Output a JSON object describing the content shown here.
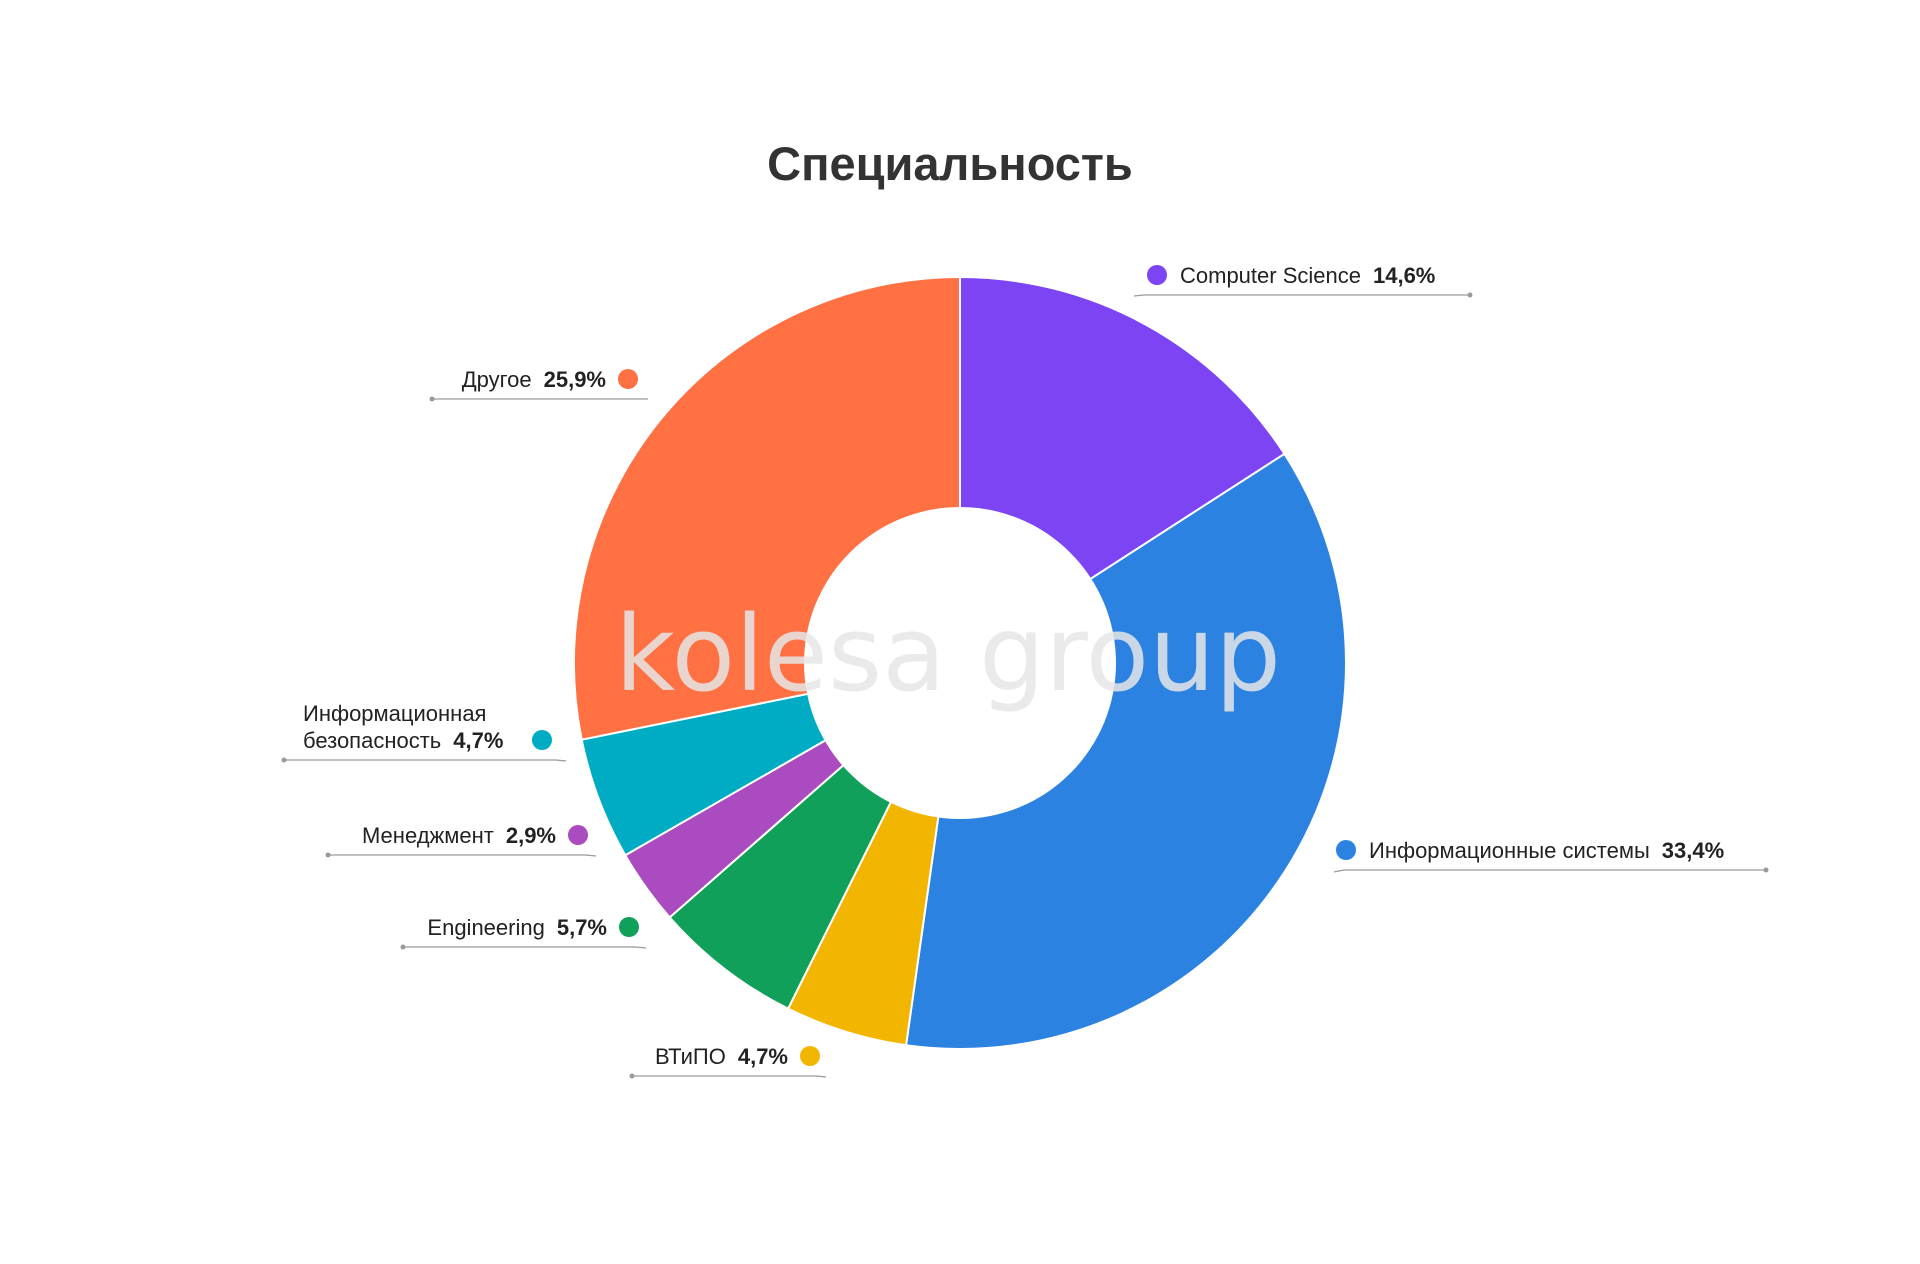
{
  "watermark": "kolesa group",
  "chart_data": {
    "type": "pie",
    "donut": true,
    "title": "Специальность",
    "slices": [
      {
        "label": "Computer Science",
        "value": 14.6,
        "value_text": "14,6%",
        "color": "#7C44F2"
      },
      {
        "label": "Информационные системы",
        "value": 33.4,
        "value_text": "33,4%",
        "color": "#2B82E0"
      },
      {
        "label": "ВТиПО",
        "value": 4.7,
        "value_text": "4,7%",
        "color": "#F3B600"
      },
      {
        "label": "Engineering",
        "value": 5.7,
        "value_text": "5,7%",
        "color": "#11A05A"
      },
      {
        "label": "Менеджмент",
        "value": 2.9,
        "value_text": "2,9%",
        "color": "#AA4BBF"
      },
      {
        "label": "Информационная безопасность",
        "label_lines": [
          "Информационная",
          "безопасность"
        ],
        "value": 4.7,
        "value_text": "4,7%",
        "color": "#00ACC4"
      },
      {
        "label": "Другое",
        "value": 25.9,
        "value_text": "25,9%",
        "color": "#FF7043"
      }
    ]
  }
}
